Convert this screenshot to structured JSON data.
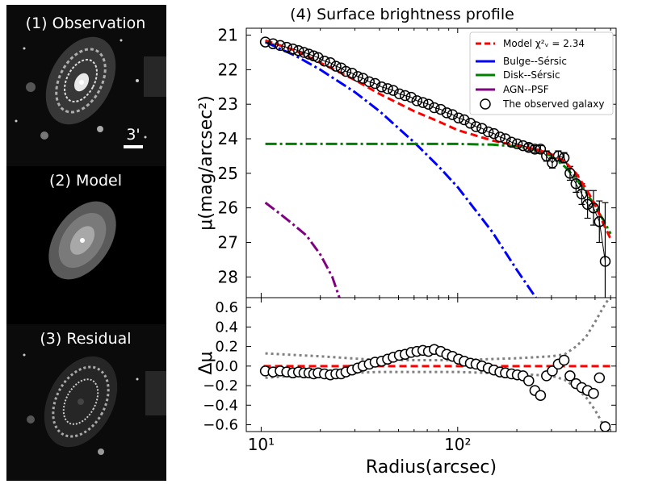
{
  "panels": {
    "observation_label": "(1) Observation",
    "scale_bar_label": "3'",
    "model_label": "(2) Model",
    "residual_label": "(3) Residual"
  },
  "colors": {
    "model": "#ff0000",
    "bulge": "#0000ff",
    "disk": "#008000",
    "agn": "#800080",
    "observed": "#000000",
    "envelope": "#808080"
  },
  "chart_data": [
    {
      "type": "line",
      "title": "(4) Surface brightness profile",
      "xlabel": "Radius(arcsec)",
      "ylabel": "μ(mag/arcsec²)",
      "xscale": "log",
      "xlim": [
        8.4,
        640
      ],
      "ylim": [
        28.6,
        20.8
      ],
      "y_inverted": true,
      "yticks": [
        21,
        22,
        23,
        24,
        25,
        26,
        27,
        28
      ],
      "ytick_labels": [
        "21",
        "22",
        "23",
        "24",
        "25",
        "26",
        "27",
        "28"
      ],
      "legend": {
        "position": "top-right",
        "entries": [
          {
            "key": "model",
            "label": "Model χ²ᵥ = 2.34"
          },
          {
            "key": "bulge",
            "label": "Bulge--Sérsic"
          },
          {
            "key": "disk",
            "label": "Disk--Sérsic"
          },
          {
            "key": "agn",
            "label": "AGN--PSF"
          },
          {
            "key": "observed",
            "label": "The observed galaxy"
          }
        ]
      },
      "series": [
        {
          "name": "Model",
          "style": "dashed",
          "x": [
            10.5,
            15,
            20,
            30,
            40,
            60,
            80,
            100,
            150,
            200,
            250,
            300,
            350,
            400,
            450,
            500,
            550,
            600
          ],
          "y": [
            21.15,
            21.45,
            21.8,
            22.3,
            22.7,
            23.2,
            23.5,
            23.75,
            24.05,
            24.2,
            24.3,
            24.45,
            24.65,
            25.0,
            25.45,
            25.9,
            26.45,
            26.9
          ]
        },
        {
          "name": "Bulge--Sérsic",
          "style": "dashdot",
          "x": [
            10.5,
            15,
            20,
            30,
            40,
            60,
            80,
            100,
            150,
            200,
            250
          ],
          "y": [
            21.2,
            21.6,
            22.0,
            22.65,
            23.2,
            24.1,
            24.8,
            25.4,
            26.7,
            27.8,
            28.6
          ]
        },
        {
          "name": "Disk--Sérsic",
          "style": "dashdot",
          "x": [
            10.5,
            20,
            50,
            100,
            150,
            200,
            250,
            300,
            350,
            400,
            450,
            500,
            550,
            600
          ],
          "y": [
            24.15,
            24.15,
            24.15,
            24.15,
            24.17,
            24.22,
            24.32,
            24.5,
            24.8,
            25.15,
            25.55,
            25.95,
            26.35,
            26.75
          ]
        },
        {
          "name": "AGN--PSF",
          "style": "dashdot",
          "x": [
            10.5,
            12,
            14,
            17,
            20,
            23,
            25
          ],
          "y": [
            25.85,
            26.1,
            26.4,
            26.8,
            27.35,
            28.0,
            28.6
          ]
        }
      ],
      "observed": {
        "name": "The observed galaxy",
        "x": [
          10.5,
          11.5,
          12.5,
          13.5,
          14.5,
          15.5,
          16.5,
          17.5,
          18.5,
          19.5,
          21,
          22.5,
          24,
          25.5,
          27,
          29,
          31,
          33,
          35.5,
          38,
          41,
          44,
          47,
          50.5,
          54,
          58,
          62,
          66.5,
          71,
          76,
          82,
          88,
          94,
          101,
          108,
          116,
          124,
          133,
          143,
          153,
          164,
          175,
          188,
          201,
          215,
          230,
          247,
          264,
          283,
          303,
          325,
          348,
          373,
          400,
          428,
          458,
          491,
          526,
          563
        ],
        "y": [
          21.2,
          21.25,
          21.3,
          21.35,
          21.4,
          21.45,
          21.5,
          21.55,
          21.6,
          21.65,
          21.75,
          21.8,
          21.9,
          21.95,
          22.05,
          22.1,
          22.2,
          22.25,
          22.35,
          22.4,
          22.5,
          22.55,
          22.6,
          22.7,
          22.75,
          22.8,
          22.9,
          22.95,
          23.0,
          23.1,
          23.15,
          23.25,
          23.3,
          23.4,
          23.45,
          23.55,
          23.65,
          23.7,
          23.8,
          23.85,
          23.95,
          24.0,
          24.1,
          24.15,
          24.2,
          24.25,
          24.3,
          24.3,
          24.5,
          24.7,
          24.5,
          24.55,
          25.0,
          25.3,
          25.6,
          25.9,
          26.0,
          26.4,
          27.55
        ],
        "err": [
          0.05,
          0.05,
          0.05,
          0.05,
          0.05,
          0.05,
          0.05,
          0.05,
          0.05,
          0.05,
          0.05,
          0.05,
          0.05,
          0.05,
          0.05,
          0.05,
          0.05,
          0.05,
          0.05,
          0.05,
          0.05,
          0.05,
          0.05,
          0.05,
          0.05,
          0.05,
          0.05,
          0.05,
          0.05,
          0.05,
          0.05,
          0.05,
          0.05,
          0.05,
          0.05,
          0.05,
          0.05,
          0.05,
          0.05,
          0.05,
          0.05,
          0.05,
          0.05,
          0.05,
          0.05,
          0.1,
          0.1,
          0.1,
          0.15,
          0.15,
          0.15,
          0.15,
          0.2,
          0.25,
          0.3,
          0.4,
          0.5,
          0.6,
          1.7
        ]
      }
    },
    {
      "type": "scatter",
      "xlabel": "Radius(arcsec)",
      "ylabel": "Δμ",
      "xscale": "log",
      "xlim": [
        8.4,
        640
      ],
      "ylim": [
        -0.67,
        0.7
      ],
      "yticks": [
        0.6,
        0.4,
        0.2,
        0.0,
        -0.2,
        -0.4,
        -0.6
      ],
      "ytick_labels": [
        "0.6",
        "0.4",
        "0.2",
        "0.0",
        "−0.2",
        "−0.4",
        "−0.6"
      ],
      "xticks": [
        10,
        100
      ],
      "xtick_labels": [
        "10¹",
        "10²"
      ],
      "zero_line": {
        "y": 0.0,
        "style": "dashed"
      },
      "envelope_upper": {
        "x": [
          10.5,
          20,
          40,
          100,
          200,
          300,
          350,
          400,
          450,
          500,
          550,
          600
        ],
        "y": [
          0.13,
          0.1,
          0.06,
          0.06,
          0.08,
          0.1,
          0.12,
          0.2,
          0.3,
          0.45,
          0.6,
          0.72
        ]
      },
      "envelope_lower": {
        "x": [
          10.5,
          20,
          40,
          100,
          200,
          300,
          350,
          400,
          450,
          500,
          550,
          600
        ],
        "y": [
          -0.12,
          -0.08,
          -0.06,
          -0.06,
          -0.08,
          -0.1,
          -0.14,
          -0.22,
          -0.32,
          -0.45,
          -0.6,
          -0.72
        ]
      },
      "residuals": {
        "x": [
          10.5,
          11.5,
          12.5,
          13.5,
          14.5,
          15.5,
          16.5,
          17.5,
          18.5,
          19.5,
          21,
          22.5,
          24,
          25.5,
          27,
          29,
          31,
          33,
          35.5,
          38,
          41,
          44,
          47,
          50.5,
          54,
          58,
          62,
          66.5,
          71,
          76,
          82,
          88,
          94,
          101,
          108,
          116,
          124,
          133,
          143,
          153,
          164,
          175,
          188,
          201,
          215,
          230,
          247,
          264,
          283,
          303,
          325,
          348,
          373,
          400,
          428,
          458,
          491,
          526,
          563
        ],
        "y": [
          -0.05,
          -0.06,
          -0.05,
          -0.06,
          -0.07,
          -0.06,
          -0.07,
          -0.07,
          -0.08,
          -0.07,
          -0.08,
          -0.09,
          -0.08,
          -0.08,
          -0.06,
          -0.04,
          -0.02,
          0.0,
          0.02,
          0.04,
          0.05,
          0.07,
          0.09,
          0.11,
          0.12,
          0.14,
          0.15,
          0.16,
          0.15,
          0.17,
          0.15,
          0.12,
          0.1,
          0.07,
          0.05,
          0.03,
          0.02,
          0.0,
          -0.02,
          -0.04,
          -0.06,
          -0.07,
          -0.08,
          -0.09,
          -0.1,
          -0.15,
          -0.25,
          -0.3,
          -0.1,
          -0.05,
          0.02,
          0.06,
          -0.1,
          -0.18,
          -0.22,
          -0.25,
          -0.28,
          -0.12,
          -0.62
        ]
      }
    }
  ]
}
